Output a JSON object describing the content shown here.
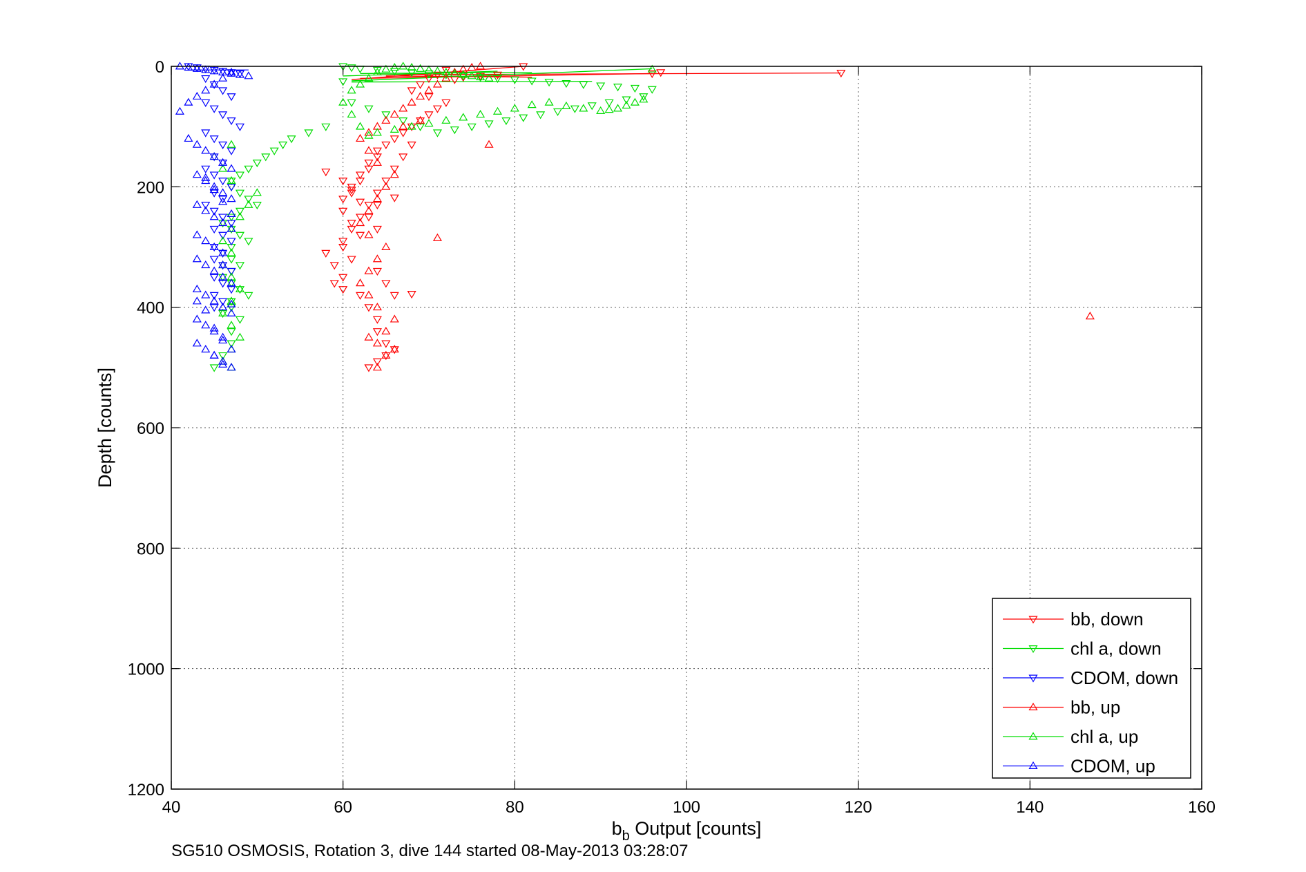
{
  "chart_data": {
    "type": "scatter",
    "title": "",
    "xlabel": "b",
    "xlabel_sub": "b",
    "xlabel_rest": " Output [counts]",
    "ylabel": "Depth [counts]",
    "xlim": [
      40,
      160
    ],
    "ylim": [
      0,
      1200
    ],
    "y_reversed": true,
    "grid": true,
    "grid_style": "dotted",
    "xticks": [
      40,
      60,
      80,
      100,
      120,
      140,
      160
    ],
    "yticks": [
      0,
      200,
      400,
      600,
      800,
      1000,
      1200
    ],
    "legend_position": "bottom-right",
    "series": [
      {
        "name": "bb, down",
        "color": "#ff0000",
        "marker": "triangle-down",
        "x": [
          81,
          118,
          97,
          96,
          72,
          71,
          70,
          73,
          74,
          76,
          78,
          69,
          68,
          70,
          72,
          71,
          70,
          69,
          68,
          67,
          66,
          65,
          64,
          64,
          63,
          63,
          62,
          62,
          61,
          61,
          60,
          60,
          61,
          62,
          60,
          61,
          64,
          65,
          66,
          63,
          64,
          64,
          65,
          66,
          65,
          64,
          63,
          62,
          60,
          59,
          60,
          59,
          58,
          60,
          61,
          62,
          63,
          64,
          65,
          66,
          67,
          68,
          64,
          63,
          64,
          58,
          60,
          61,
          62,
          68,
          66
        ],
        "y": [
          0,
          11,
          10,
          12,
          6,
          14,
          20,
          22,
          18,
          16,
          14,
          30,
          40,
          50,
          60,
          70,
          80,
          90,
          100,
          110,
          120,
          130,
          140,
          150,
          160,
          170,
          180,
          190,
          200,
          210,
          220,
          240,
          260,
          280,
          300,
          320,
          340,
          360,
          380,
          400,
          420,
          440,
          460,
          470,
          480,
          490,
          500,
          380,
          370,
          360,
          350,
          330,
          310,
          290,
          270,
          250,
          230,
          210,
          190,
          170,
          150,
          130,
          230,
          250,
          270,
          175,
          190,
          205,
          225,
          378,
          218
        ]
      },
      {
        "name": "chl a, down",
        "color": "#00dd00",
        "marker": "triangle-down",
        "x": [
          60,
          61,
          62,
          64,
          66,
          68,
          70,
          72,
          74,
          76,
          78,
          80,
          82,
          84,
          86,
          88,
          90,
          92,
          94,
          96,
          95,
          93,
          91,
          89,
          87,
          85,
          83,
          81,
          79,
          77,
          75,
          73,
          71,
          69,
          67,
          65,
          63,
          61,
          60,
          58,
          56,
          54,
          53,
          52,
          51,
          50,
          49,
          48,
          47,
          47,
          48,
          49,
          50,
          48,
          47,
          46,
          47,
          48,
          49,
          47,
          46,
          47,
          48,
          47,
          46,
          47,
          48,
          49,
          47,
          47,
          46,
          48,
          47,
          47,
          46,
          45
        ],
        "y": [
          0,
          2,
          4,
          6,
          8,
          10,
          12,
          14,
          16,
          18,
          20,
          22,
          24,
          26,
          28,
          30,
          32,
          34,
          36,
          38,
          50,
          55,
          60,
          65,
          70,
          75,
          80,
          85,
          90,
          95,
          100,
          105,
          110,
          100,
          90,
          80,
          70,
          60,
          25,
          100,
          110,
          120,
          130,
          140,
          150,
          160,
          170,
          180,
          190,
          200,
          210,
          220,
          230,
          240,
          250,
          260,
          270,
          280,
          290,
          300,
          310,
          320,
          330,
          340,
          350,
          360,
          370,
          380,
          390,
          400,
          410,
          420,
          440,
          460,
          480,
          500
        ]
      },
      {
        "name": "CDOM, down",
        "color": "#0000ff",
        "marker": "triangle-down",
        "x": [
          42,
          43,
          44,
          45,
          46,
          47,
          48,
          44,
          45,
          46,
          47,
          44,
          45,
          46,
          47,
          48,
          44,
          45,
          46,
          47,
          45,
          46,
          44,
          45,
          46,
          47,
          45,
          46,
          44,
          45,
          46,
          47,
          45,
          46,
          47,
          45,
          46,
          45,
          46,
          47,
          45,
          46,
          47,
          45,
          46,
          45
        ],
        "y": [
          0,
          2,
          4,
          6,
          8,
          10,
          12,
          20,
          30,
          40,
          50,
          60,
          70,
          80,
          90,
          100,
          110,
          120,
          130,
          140,
          150,
          160,
          170,
          180,
          190,
          200,
          210,
          220,
          230,
          240,
          250,
          260,
          270,
          280,
          290,
          300,
          310,
          320,
          330,
          340,
          350,
          360,
          370,
          380,
          390,
          400
        ]
      },
      {
        "name": "bb, up",
        "color": "#ff0000",
        "marker": "triangle-up",
        "x": [
          147,
          64,
          65,
          66,
          64,
          63,
          65,
          66,
          64,
          63,
          62,
          63,
          64,
          65,
          63,
          62,
          63,
          64,
          65,
          66,
          64,
          63,
          62,
          63,
          64,
          65,
          66,
          67,
          68,
          69,
          70,
          71,
          72,
          73,
          74,
          75,
          76,
          77,
          71,
          69,
          67
        ],
        "y": [
          415,
          500,
          480,
          470,
          460,
          450,
          440,
          420,
          400,
          380,
          360,
          340,
          320,
          300,
          280,
          260,
          240,
          220,
          200,
          180,
          160,
          140,
          120,
          110,
          100,
          90,
          80,
          70,
          60,
          50,
          40,
          30,
          20,
          10,
          5,
          2,
          0,
          130,
          285,
          90,
          100
        ]
      },
      {
        "name": "chl a, up",
        "color": "#00dd00",
        "marker": "triangle-up",
        "x": [
          96,
          95,
          94,
          93,
          92,
          91,
          90,
          88,
          86,
          84,
          82,
          80,
          78,
          76,
          74,
          72,
          70,
          68,
          66,
          64,
          63,
          62,
          61,
          60,
          61,
          62,
          63,
          64,
          65,
          66,
          67,
          68,
          69,
          70,
          71,
          72,
          73,
          74,
          75,
          76,
          77,
          47,
          46,
          47,
          48,
          47,
          46,
          47,
          48,
          47,
          46,
          47,
          46,
          47,
          48,
          49,
          50,
          47,
          46,
          45,
          47
        ],
        "y": [
          5,
          55,
          60,
          65,
          70,
          72,
          74,
          70,
          66,
          60,
          64,
          70,
          75,
          80,
          85,
          90,
          95,
          100,
          105,
          110,
          115,
          100,
          80,
          60,
          40,
          30,
          20,
          10,
          5,
          2,
          0,
          2,
          4,
          6,
          8,
          10,
          12,
          14,
          16,
          18,
          20,
          500,
          490,
          470,
          450,
          430,
          410,
          390,
          370,
          350,
          330,
          310,
          290,
          270,
          250,
          230,
          210,
          190,
          170,
          150,
          130
        ]
      },
      {
        "name": "CDOM, up",
        "color": "#0000ff",
        "marker": "triangle-up",
        "x": [
          41,
          42,
          43,
          44,
          45,
          46,
          47,
          48,
          49,
          41,
          42,
          43,
          44,
          45,
          46,
          47,
          42,
          43,
          44,
          45,
          46,
          47,
          43,
          44,
          45,
          46,
          47,
          43,
          44,
          45,
          46,
          47,
          43,
          44,
          45,
          46,
          43,
          44,
          45,
          46,
          47,
          43,
          44,
          45,
          46,
          47,
          43,
          44,
          45,
          46,
          43,
          44,
          45,
          46,
          47,
          44,
          45,
          46,
          47,
          43,
          44,
          45,
          46,
          45,
          46,
          47,
          46,
          47
        ],
        "y": [
          0,
          2,
          4,
          6,
          8,
          10,
          12,
          14,
          16,
          75,
          60,
          50,
          40,
          30,
          20,
          10,
          120,
          130,
          140,
          150,
          160,
          170,
          180,
          190,
          200,
          210,
          220,
          230,
          240,
          250,
          260,
          270,
          280,
          290,
          300,
          310,
          320,
          330,
          340,
          350,
          360,
          370,
          380,
          390,
          400,
          410,
          420,
          430,
          440,
          450,
          460,
          470,
          480,
          490,
          500,
          185,
          205,
          225,
          245,
          390,
          405,
          435,
          455,
          480,
          495,
          470,
          330,
          395
        ]
      }
    ],
    "segments": [
      {
        "color": "#ff0000",
        "x": [
          64,
          118
        ],
        "y": [
          14,
          11
        ]
      },
      {
        "color": "#ff0000",
        "x": [
          62,
          96
        ],
        "y": [
          20,
          12
        ]
      },
      {
        "color": "#ff0000",
        "x": [
          61,
          81
        ],
        "y": [
          22,
          0
        ]
      },
      {
        "color": "#ff0000",
        "x": [
          65,
          82
        ],
        "y": [
          16,
          18
        ]
      },
      {
        "color": "#00dd00",
        "x": [
          61,
          96
        ],
        "y": [
          24,
          4
        ]
      },
      {
        "color": "#00dd00",
        "x": [
          61,
          89
        ],
        "y": [
          26,
          25
        ]
      },
      {
        "color": "#00dd00",
        "x": [
          62,
          82
        ],
        "y": [
          12,
          10
        ]
      },
      {
        "color": "#00dd00",
        "x": [
          60,
          78
        ],
        "y": [
          16,
          8
        ]
      },
      {
        "color": "#0000ff",
        "x": [
          42,
          49
        ],
        "y": [
          6,
          6
        ]
      }
    ]
  },
  "footer": "SG510 OSMOSIS, Rotation 3, dive 144 started 08-May-2013 03:28:07"
}
